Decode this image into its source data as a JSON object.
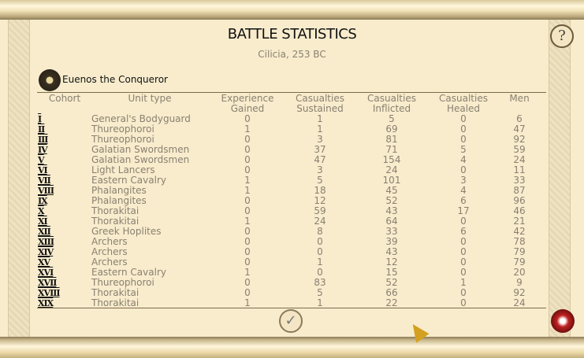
{
  "title": "BATTLE STATISTICS",
  "subtitle": "Cilicia, 253 BC",
  "general": "Euenos the Conqueror",
  "help_label": "?",
  "ok_label": "✓",
  "columns": [
    "Cohort",
    "Unit type",
    "Experience Gained",
    "Casualties Sustained",
    "Casualties Inflicted",
    "Casualties Healed",
    "Men"
  ],
  "rows": [
    [
      "I",
      "General's Bodyguard",
      "0",
      "1",
      "5",
      "0",
      "6"
    ],
    [
      "II",
      "Thureophoroi",
      "1",
      "1",
      "69",
      "0",
      "47"
    ],
    [
      "III",
      "Thureophoroi",
      "0",
      "3",
      "81",
      "0",
      "92"
    ],
    [
      "IV",
      "Galatian Swordsmen",
      "0",
      "37",
      "71",
      "5",
      "59"
    ],
    [
      "V",
      "Galatian Swordsmen",
      "0",
      "47",
      "154",
      "4",
      "24"
    ],
    [
      "VI",
      "Light Lancers",
      "0",
      "3",
      "24",
      "0",
      "11"
    ],
    [
      "VII",
      "Eastern Cavalry",
      "1",
      "5",
      "101",
      "3",
      "33"
    ],
    [
      "VIII",
      "Phalangites",
      "1",
      "18",
      "45",
      "4",
      "87"
    ],
    [
      "IX",
      "Phalangites",
      "0",
      "12",
      "52",
      "6",
      "96"
    ],
    [
      "X",
      "Thorakitai",
      "0",
      "59",
      "43",
      "17",
      "46"
    ],
    [
      "XI",
      "Thorakitai",
      "1",
      "24",
      "64",
      "0",
      "21"
    ],
    [
      "XII",
      "Greek Hoplites",
      "0",
      "8",
      "33",
      "6",
      "42"
    ],
    [
      "XIII",
      "Archers",
      "0",
      "0",
      "39",
      "0",
      "78"
    ],
    [
      "XIV",
      "Archers",
      "0",
      "0",
      "43",
      "0",
      "79"
    ],
    [
      "XV",
      "Archers",
      "0",
      "1",
      "12",
      "0",
      "79"
    ],
    [
      "XVI",
      "Eastern Cavalry",
      "1",
      "0",
      "15",
      "0",
      "20"
    ],
    [
      "XVII",
      "Thureophoroi",
      "0",
      "83",
      "52",
      "1",
      "9"
    ],
    [
      "XVIII",
      "Thorakitai",
      "0",
      "5",
      "66",
      "0",
      "92"
    ],
    [
      "XIX",
      "Thorakitai",
      "1",
      "1",
      "22",
      "0",
      "24"
    ]
  ],
  "icons": {
    "help": "help-icon",
    "general": "general-emblem-icon",
    "ok": "checkmark-icon",
    "tower": "tower-icon",
    "cursor": "cursor-arrow-icon"
  }
}
